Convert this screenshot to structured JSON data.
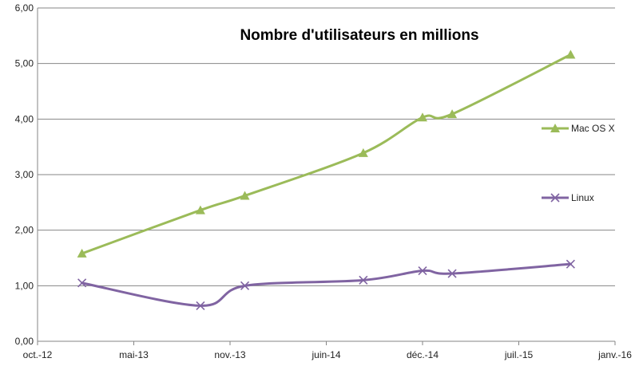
{
  "chart_data": {
    "type": "line",
    "title": "Nombre d'utilisateurs  en millions",
    "xlabel": "",
    "ylabel": "",
    "x_ticks": [
      "oct.-12",
      "mai-13",
      "nov.-13",
      "juin-14",
      "déc.-14",
      "juil.-15",
      "janv.-16"
    ],
    "y_ticks": [
      "0,00",
      "1,00",
      "2,00",
      "3,00",
      "4,00",
      "5,00",
      "6,00"
    ],
    "ylim": [
      0,
      6
    ],
    "xlim": [
      "2012-10",
      "2016-01"
    ],
    "grid": "horizontal",
    "legend_position": "right",
    "series": [
      {
        "name": "Mac OS X",
        "color": "#9BBB59",
        "marker": "triangle",
        "x": [
          "2013-01",
          "2013-09",
          "2013-12",
          "2014-08",
          "2014-12",
          "2015-02",
          "2015-10"
        ],
        "values": [
          1.58,
          2.36,
          2.62,
          3.39,
          4.03,
          4.09,
          5.16
        ]
      },
      {
        "name": "Linux",
        "color": "#8064A2",
        "marker": "x",
        "x": [
          "2013-01",
          "2013-09",
          "2013-12",
          "2014-08",
          "2014-12",
          "2015-02",
          "2015-10"
        ],
        "values": [
          1.05,
          0.64,
          1.0,
          1.1,
          1.27,
          1.22,
          1.39
        ]
      }
    ]
  }
}
